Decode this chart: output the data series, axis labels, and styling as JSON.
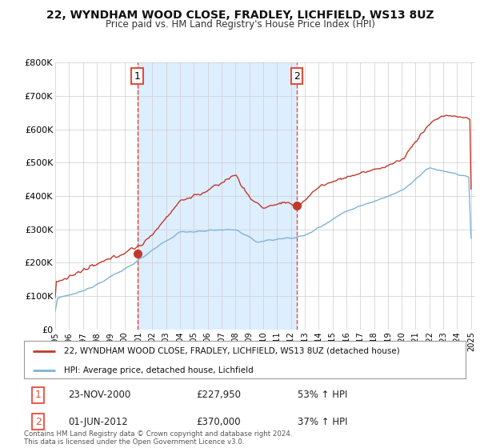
{
  "title": "22, WYNDHAM WOOD CLOSE, FRADLEY, LICHFIELD, WS13 8UZ",
  "subtitle": "Price paid vs. HM Land Registry's House Price Index (HPI)",
  "ylim": [
    0,
    800000
  ],
  "yticks": [
    0,
    100000,
    200000,
    300000,
    400000,
    500000,
    600000,
    700000,
    800000
  ],
  "ytick_labels": [
    "£0",
    "£100K",
    "£200K",
    "£300K",
    "£400K",
    "£500K",
    "£600K",
    "£700K",
    "£800K"
  ],
  "legend_line1": "22, WYNDHAM WOOD CLOSE, FRADLEY, LICHFIELD, WS13 8UZ (detached house)",
  "legend_line2": "HPI: Average price, detached house, Lichfield",
  "sale1_label": "1",
  "sale1_date": "23-NOV-2000",
  "sale1_price": "£227,950",
  "sale1_pct": "53% ↑ HPI",
  "sale2_label": "2",
  "sale2_date": "01-JUN-2012",
  "sale2_price": "£370,000",
  "sale2_pct": "37% ↑ HPI",
  "footer": "Contains HM Land Registry data © Crown copyright and database right 2024.\nThis data is licensed under the Open Government Licence v3.0.",
  "line_color_red": "#c0392b",
  "line_color_blue": "#7fb3d3",
  "vline_color": "#e74c3c",
  "shade_color": "#ddeeff",
  "bg_color": "#ffffff",
  "grid_color": "#cccccc",
  "sale1_t": 2000.917,
  "sale2_t": 2012.417,
  "sale1_price_val": 227950,
  "sale2_price_val": 370000
}
